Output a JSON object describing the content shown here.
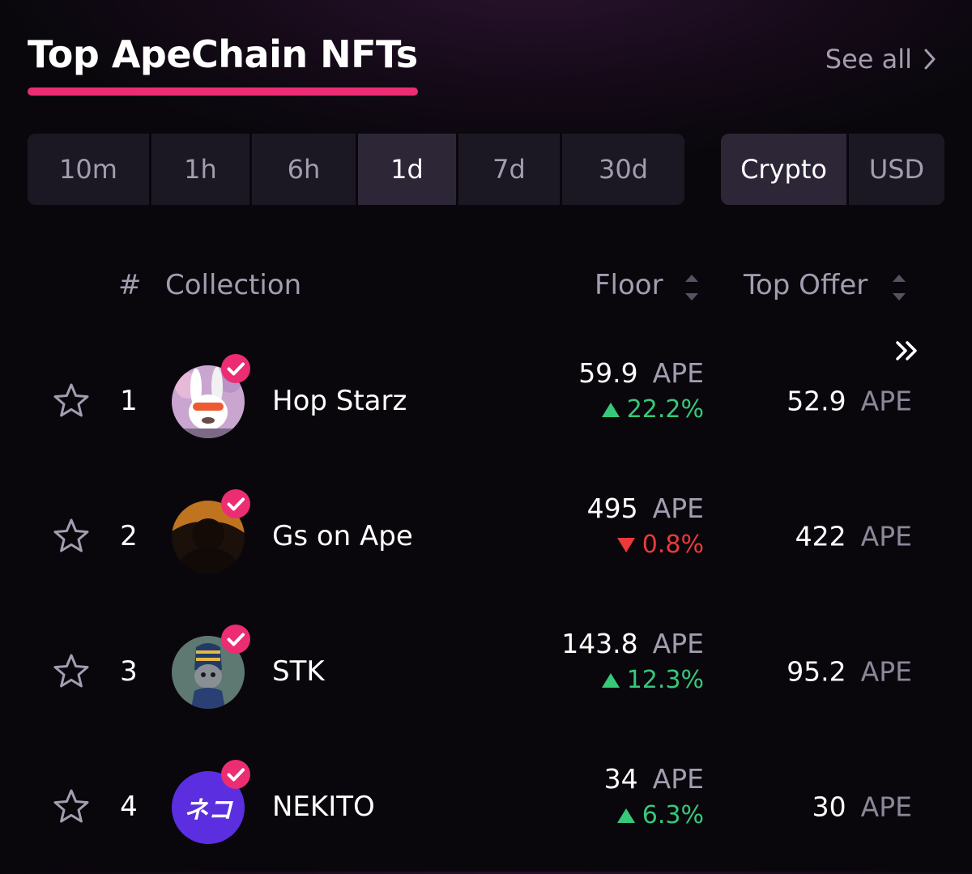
{
  "header": {
    "title": "Top ApeChain NFTs",
    "see_all": "See all"
  },
  "time_tabs": [
    {
      "label": "10m",
      "active": false
    },
    {
      "label": "1h",
      "active": false
    },
    {
      "label": "6h",
      "active": false
    },
    {
      "label": "1d",
      "active": true
    },
    {
      "label": "7d",
      "active": false
    },
    {
      "label": "30d",
      "active": false
    }
  ],
  "currency_tabs": [
    {
      "label": "Crypto",
      "active": true
    },
    {
      "label": "USD",
      "active": false
    }
  ],
  "columns": {
    "rank": "#",
    "collection": "Collection",
    "floor": "Floor",
    "top_offer": "Top Offer"
  },
  "rows": [
    {
      "rank": "1",
      "name": "Hop Starz",
      "floor": "59.9",
      "floor_unit": "APE",
      "change": "22.2%",
      "direction": "up",
      "top_offer": "52.9",
      "offer_unit": "APE",
      "verified": true
    },
    {
      "rank": "2",
      "name": "Gs on Ape",
      "floor": "495",
      "floor_unit": "APE",
      "change": "0.8%",
      "direction": "down",
      "top_offer": "422",
      "offer_unit": "APE",
      "verified": true
    },
    {
      "rank": "3",
      "name": "STK",
      "floor": "143.8",
      "floor_unit": "APE",
      "change": "12.3%",
      "direction": "up",
      "top_offer": "95.2",
      "offer_unit": "APE",
      "verified": true
    },
    {
      "rank": "4",
      "name": "NEKITO",
      "floor": "34",
      "floor_unit": "APE",
      "change": "6.3%",
      "direction": "up",
      "top_offer": "30",
      "offer_unit": "APE",
      "verified": true,
      "avatar_text": "ネコ"
    }
  ],
  "colors": {
    "accent": "#ec2c73",
    "up": "#37c879",
    "down": "#ea3a3a",
    "muted": "#a49db0"
  },
  "icons": {
    "see_all": "chevron-right-icon",
    "sort": "sort-updown-icon",
    "expand": "double-chevron-right-icon",
    "favorite": "star-outline-icon",
    "verified": "verified-badge-icon"
  }
}
